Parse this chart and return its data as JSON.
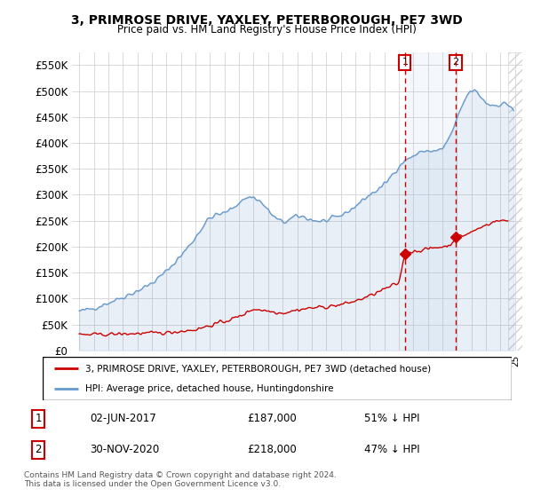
{
  "title": "3, PRIMROSE DRIVE, YAXLEY, PETERBOROUGH, PE7 3WD",
  "subtitle": "Price paid vs. HM Land Registry's House Price Index (HPI)",
  "red_label": "3, PRIMROSE DRIVE, YAXLEY, PETERBOROUGH, PE7 3WD (detached house)",
  "blue_label": "HPI: Average price, detached house, Huntingdonshire",
  "footer": "Contains HM Land Registry data © Crown copyright and database right 2024.\nThis data is licensed under the Open Government Licence v3.0.",
  "annotation1": {
    "num": "1",
    "date": "02-JUN-2017",
    "price": "£187,000",
    "note": "51% ↓ HPI"
  },
  "annotation2": {
    "num": "2",
    "date": "30-NOV-2020",
    "price": "£218,000",
    "note": "47% ↓ HPI"
  },
  "ylim": [
    0,
    575000
  ],
  "yticks": [
    0,
    50000,
    100000,
    150000,
    200000,
    250000,
    300000,
    350000,
    400000,
    450000,
    500000,
    550000
  ],
  "ytick_labels": [
    "£0",
    "£50K",
    "£100K",
    "£150K",
    "£200K",
    "£250K",
    "£300K",
    "£350K",
    "£400K",
    "£450K",
    "£500K",
    "£550K"
  ],
  "red_color": "#cc0000",
  "blue_color": "#6699cc",
  "blue_fill": "#ddeeff",
  "ann1_x": 2017.42,
  "ann1_y": 187000,
  "ann2_x": 2020.92,
  "ann2_y": 218000,
  "xlim_start": 1995.0,
  "xlim_end": 2025.5,
  "hatch_start": 2024.5
}
